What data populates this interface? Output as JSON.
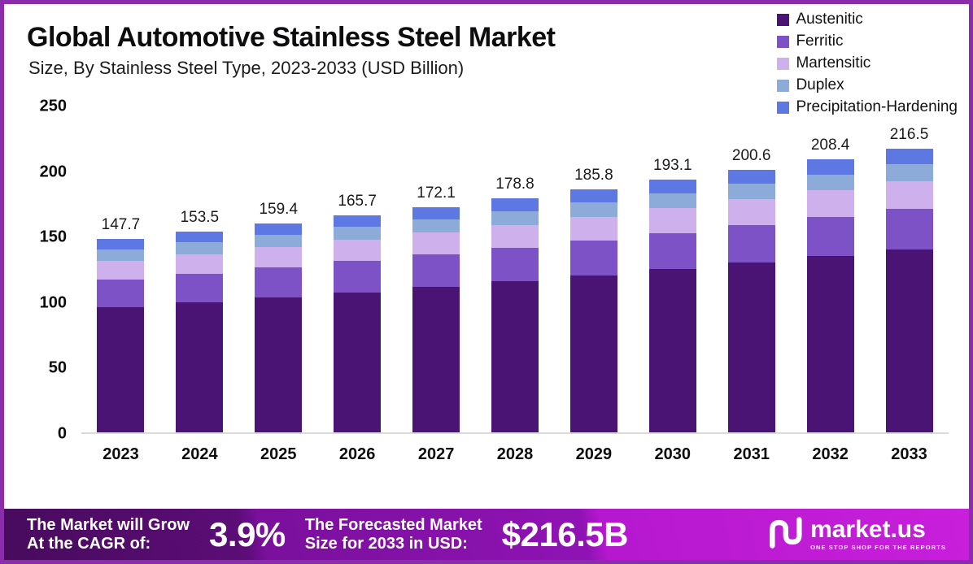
{
  "header": {
    "title": "Global Automotive Stainless Steel Market",
    "subtitle": "Size, By Stainless Steel Type, 2023-2033 (USD Billion)"
  },
  "chart_data": {
    "type": "bar",
    "stacked": true,
    "title": "Global Automotive Stainless Steel Market",
    "subtitle": "Size, By Stainless Steel Type, 2023-2033 (USD Billion)",
    "categories": [
      "2023",
      "2024",
      "2025",
      "2026",
      "2027",
      "2028",
      "2029",
      "2030",
      "2031",
      "2032",
      "2033"
    ],
    "totals": [
      147.7,
      153.5,
      159.4,
      165.7,
      172.1,
      178.8,
      185.8,
      193.1,
      200.6,
      208.4,
      216.5
    ],
    "series": [
      {
        "name": "Austenitic",
        "color": "#4a1475",
        "values": [
          95.3,
          99.0,
          102.8,
          106.9,
          111.0,
          115.3,
          119.8,
          124.5,
          129.4,
          134.4,
          139.6
        ]
      },
      {
        "name": "Ferritic",
        "color": "#7e52c7",
        "values": [
          21.3,
          22.1,
          23.0,
          23.9,
          24.8,
          25.7,
          26.8,
          27.8,
          28.9,
          30.0,
          31.2
        ]
      },
      {
        "name": "Martensitic",
        "color": "#cdb0ec",
        "values": [
          14.3,
          14.9,
          15.5,
          16.1,
          16.7,
          17.3,
          18.0,
          18.7,
          19.5,
          20.2,
          21.0
        ]
      },
      {
        "name": "Duplex",
        "color": "#8cabd8",
        "values": [
          8.7,
          9.1,
          9.4,
          9.8,
          10.2,
          10.5,
          11.0,
          11.4,
          11.8,
          12.3,
          12.8
        ]
      },
      {
        "name": "Precipitation-Hardening",
        "color": "#5d78e3",
        "values": [
          8.1,
          8.4,
          8.7,
          9.0,
          9.4,
          10.0,
          10.2,
          10.7,
          11.0,
          11.5,
          11.9
        ]
      }
    ],
    "ylim": [
      0,
      250
    ],
    "yticks": [
      0,
      50,
      100,
      150,
      200,
      250
    ],
    "legend_position": "top-right",
    "grid": false
  },
  "footer": {
    "grow_label": "The Market will Grow\nAt the CAGR of:",
    "cagr_value": "3.9%",
    "forecast_label": "The Forecasted Market\nSize for 2033 in USD:",
    "forecast_value": "$216.5B",
    "brand_name": "market.us",
    "brand_tagline": "ONE STOP SHOP FOR THE REPORTS"
  },
  "colors": {
    "frame_border": "#8a2dab",
    "banner_left": "#470b5c",
    "banner_right": "#c81fdb"
  }
}
